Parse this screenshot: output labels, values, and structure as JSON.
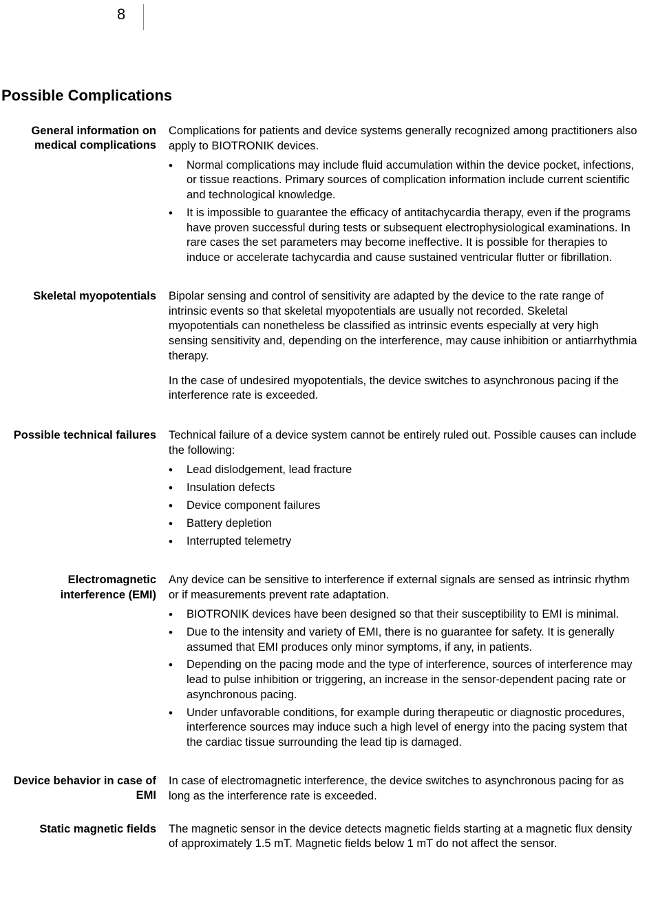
{
  "page_number": "8",
  "section_title": "Possible Complications",
  "entries": [
    {
      "label": "General information on medical complications",
      "intro": "Complications for patients and device systems generally recognized among practitioners also apply to BIOTRONIK devices.",
      "bullets": [
        "Normal complications may include fluid accumulation within the device pocket, infections, or tissue reactions. Primary sources of complication information include current scientific and technological knowledge.",
        "It is impossible to guarantee the efficacy of antitachycardia therapy, even if the programs have proven successful during tests or subsequent electrophysiological examinations. In rare cases the set parameters may become ineffective. It is possible for therapies to induce or accelerate tachycardia and cause sustained ventricular flutter or fibrillation."
      ]
    },
    {
      "label": "Skeletal myopotentials",
      "paragraphs": [
        "Bipolar sensing and control of sensitivity are adapted by the device to the rate range of intrinsic events so that skeletal myopotentials are usually not recorded. Skeletal myopotentials can nonetheless be classified as intrinsic events especially at very high sensing sensitivity and, depending on the interference, may cause inhibition or antiarrhythmia therapy.",
        "In the case of undesired myopotentials, the device switches to asynchronous pacing if the interference rate is exceeded."
      ]
    },
    {
      "label": "Possible technical failures",
      "intro": "Technical failure of a device system cannot be entirely ruled out. Possible causes can include the following:",
      "bullets": [
        "Lead dislodgement, lead fracture",
        "Insulation defects",
        "Device component failures",
        "Battery depletion",
        "Interrupted telemetry"
      ]
    },
    {
      "label": "Electromagnetic interference (EMI)",
      "intro": "Any device can be sensitive to interference if external signals are sensed as intrinsic rhythm or if measurements prevent rate adaptation.",
      "bullets": [
        "BIOTRONIK devices have been designed so that their susceptibility to EMI is minimal.",
        "Due to the intensity and variety of EMI, there is no guarantee for safety. It is generally assumed that EMI produces only minor symptoms, if any, in patients.",
        "Depending on the pacing mode and the type of interference, sources of interference may lead to pulse inhibition or triggering, an increase in the sensor-dependent pacing rate or asynchronous pacing.",
        "Under unfavorable conditions, for example during therapeutic or diagnostic procedures, interference sources may induce such a high level of energy into the pacing system that the cardiac tissue surrounding the lead tip is damaged."
      ]
    },
    {
      "label": "Device behavior in case of EMI",
      "paragraphs": [
        "In case of electromagnetic interference, the device switches to asynchronous pacing for as long as the interference rate is exceeded."
      ]
    },
    {
      "label": "Static magnetic fields",
      "paragraphs": [
        "The magnetic sensor in the device detects magnetic fields starting at a magnetic flux density of approximately 1.5 mT. Magnetic fields below 1 mT do not affect the sensor."
      ]
    }
  ],
  "colors": {
    "background": "#ffffff",
    "text": "#000000",
    "rule": "#888888"
  },
  "typography": {
    "body_fontsize_pt": 12.4,
    "title_fontsize_pt": 16.5,
    "label_weight": 700
  }
}
